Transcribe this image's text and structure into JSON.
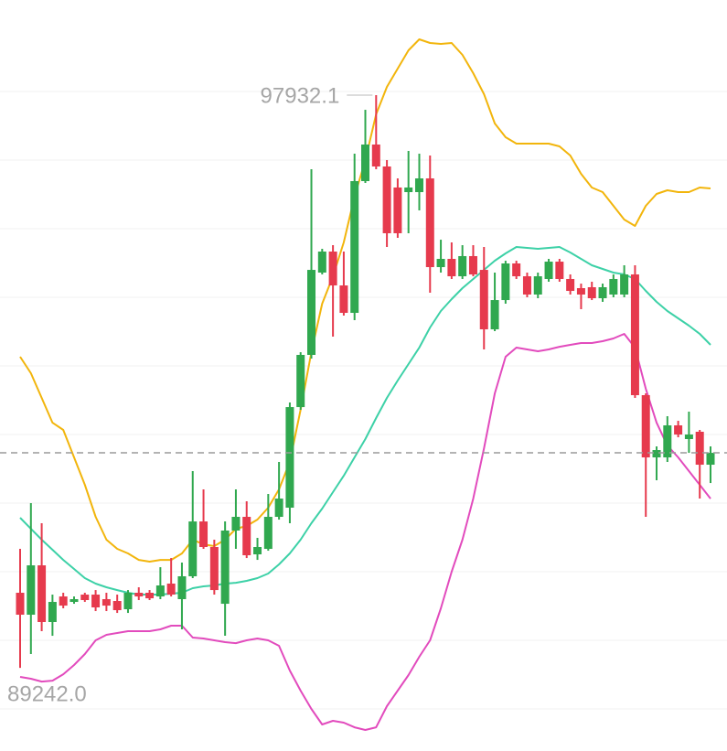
{
  "chart_data": {
    "type": "candlestick",
    "ylim": [
      87981,
      99376
    ],
    "up_color": "#30a84f",
    "down_color": "#e63a4d",
    "high_label": "97932.1",
    "low_label": "89242.0",
    "open": [
      90382,
      90049,
      90798,
      89938,
      90326,
      90243,
      90354,
      90354,
      90285,
      90257,
      90132,
      90382,
      90382,
      90326,
      90521,
      90285,
      90632,
      91464,
      91076,
      90215,
      91326,
      91534,
      90965,
      91048,
      91534,
      91673,
      93199,
      93991,
      95240,
      95559,
      95045,
      94629,
      96628,
      97183,
      96850,
      96531,
      96461,
      96461,
      96669,
      95323,
      95448,
      95184,
      95490,
      95281,
      94379,
      94823,
      95379,
      95184,
      94907,
      95143,
      95406,
      95143,
      95004,
      95018,
      94851,
      94907,
      94907,
      95212,
      93380,
      92436,
      92436,
      92922,
      92714,
      92825,
      92325
    ],
    "high": [
      91048,
      91742,
      91437,
      90354,
      90382,
      90326,
      90382,
      90423,
      90382,
      90354,
      90423,
      90465,
      90423,
      90770,
      90909,
      90840,
      92228,
      91950,
      91187,
      91464,
      91950,
      91770,
      91215,
      91881,
      92367,
      93269,
      94032,
      96808,
      95601,
      95656,
      95559,
      97044,
      97710,
      97932.1,
      96947,
      96669,
      97086,
      97044,
      97016,
      95739,
      95698,
      95656,
      95656,
      95628,
      95240,
      95420,
      95420,
      95240,
      95240,
      95448,
      95448,
      95212,
      95073,
      95101,
      95073,
      95212,
      95351,
      95351,
      93408,
      92603,
      93061,
      92991,
      93130,
      92852,
      92603
    ],
    "low": [
      89242,
      89452,
      89799,
      89729,
      90146,
      90215,
      90243,
      90104,
      90104,
      90076,
      90076,
      90271,
      90271,
      90285,
      90326,
      89827,
      90604,
      91048,
      90354,
      89729,
      91048,
      90909,
      90881,
      91020,
      91492,
      91437,
      93158,
      93935,
      95212,
      94268,
      94587,
      94518,
      96600,
      96808,
      95628,
      95767,
      95837,
      96184,
      94934,
      95240,
      95143,
      95143,
      95184,
      94074,
      94351,
      94768,
      95143,
      94865,
      94851,
      95101,
      95101,
      94907,
      94685,
      94823,
      94796,
      94865,
      94865,
      93338,
      91534,
      92089,
      92367,
      92741,
      92505,
      91811,
      92047
    ],
    "close": [
      90049,
      90798,
      89938,
      90243,
      90187,
      90285,
      90271,
      90160,
      90187,
      90118,
      90382,
      90326,
      90298,
      90493,
      90354,
      90632,
      91464,
      91076,
      90423,
      91326,
      91534,
      90951,
      91076,
      91534,
      91811,
      93199,
      93991,
      95281,
      95559,
      95045,
      94629,
      96628,
      97183,
      96850,
      95837,
      95837,
      96531,
      96669,
      95323,
      95448,
      95184,
      95490,
      95212,
      94379,
      94823,
      95379,
      95184,
      94907,
      95184,
      95406,
      95143,
      94962,
      94907,
      94851,
      95018,
      95143,
      95212,
      93380,
      92436,
      92547,
      92922,
      92783,
      92783,
      92325,
      92505
    ],
    "bands": [
      {
        "color": "#f2b50c",
        "values": [
          93963,
          93713,
          93338,
          92963,
          92852,
          92436,
          92020,
          91534,
          91187,
          91048,
          90979,
          90881,
          90854,
          90881,
          90881,
          90979,
          91187,
          91117,
          91090,
          91187,
          91353,
          91395,
          91492,
          91673,
          91950,
          92367,
          93158,
          94032,
          94768,
          95184,
          95698,
          96392,
          96947,
          97641,
          98057,
          98335,
          98613,
          98779,
          98724,
          98710,
          98724,
          98543,
          98266,
          97946,
          97502,
          97294,
          97197,
          97197,
          97197,
          97197,
          97155,
          97016,
          96739,
          96531,
          96461,
          96253,
          96045,
          95948,
          96253,
          96433,
          96489,
          96461,
          96461,
          96531,
          96517
        ]
      },
      {
        "color": "#3dd1a7",
        "values": [
          91520,
          91353,
          91187,
          91034,
          90881,
          90743,
          90604,
          90521,
          90465,
          90423,
          90382,
          90354,
          90354,
          90354,
          90368,
          90382,
          90451,
          90479,
          90493,
          90521,
          90534,
          90562,
          90604,
          90673,
          90812,
          90979,
          91187,
          91437,
          91659,
          91909,
          92158,
          92436,
          92714,
          93033,
          93338,
          93602,
          93852,
          94102,
          94407,
          94657,
          94837,
          95004,
          95143,
          95281,
          95420,
          95531,
          95628,
          95615,
          95601,
          95615,
          95628,
          95545,
          95448,
          95351,
          95295,
          95240,
          95212,
          95143,
          94962,
          94796,
          94657,
          94546,
          94435,
          94310,
          94143
        ]
      },
      {
        "color": "#e24bbd",
        "values": [
          89105,
          89077,
          89035,
          89049,
          89146,
          89285,
          89452,
          89660,
          89743,
          89771,
          89799,
          89799,
          89799,
          89827,
          89882,
          89882,
          89702,
          89688,
          89660,
          89632,
          89618,
          89660,
          89688,
          89660,
          89577,
          89202,
          88897,
          88619,
          88383,
          88439,
          88411,
          88341,
          88300,
          88341,
          88661,
          88897,
          89133,
          89410,
          89660,
          90146,
          90701,
          91187,
          91811,
          92575,
          93408,
          93963,
          94102,
          94074,
          94046,
          94074,
          94115,
          94143,
          94171,
          94171,
          94199,
          94240,
          94310,
          94102,
          93477,
          92963,
          92616,
          92436,
          92228,
          92020,
          91811
        ]
      }
    ]
  }
}
